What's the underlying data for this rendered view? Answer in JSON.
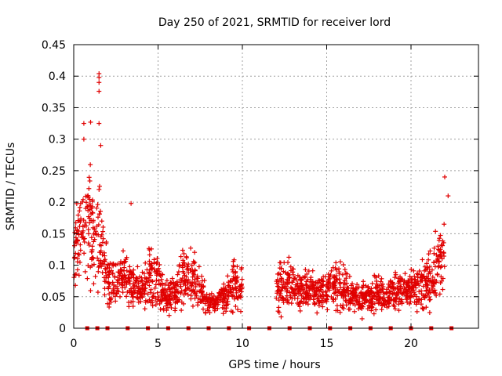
{
  "chart_data": {
    "type": "scatter",
    "title": "Day 250 of 2021, SRMTID for receiver lord",
    "xlabel": "GPS time / hours",
    "ylabel": "SRMTID / TECUs",
    "xlim": [
      0,
      24
    ],
    "ylim": [
      0,
      0.45
    ],
    "xticks": [
      0,
      5,
      10,
      15,
      20
    ],
    "xtick_labels": [
      "0",
      "5",
      "10",
      "15",
      "20"
    ],
    "yticks": [
      0,
      0.05,
      0.1,
      0.15,
      0.2,
      0.25,
      0.3,
      0.35,
      0.4,
      0.45
    ],
    "ytick_labels": [
      "0",
      "0.05",
      "0.1",
      "0.15",
      "0.2",
      "0.25",
      "0.3",
      "0.35",
      "0.4",
      "0.45"
    ],
    "grid": true,
    "marker": "+",
    "color": "#e00000",
    "series": [
      {
        "name": "SRMTID",
        "envelope": {
          "note": "approximate median and spread of the dense scatter, sampled every 0.5 h",
          "x": [
            0,
            0.5,
            1,
            1.5,
            2,
            2.5,
            3,
            3.5,
            4,
            4.5,
            5,
            5.5,
            6,
            6.5,
            7,
            7.5,
            8,
            8.5,
            9,
            9.5,
            10,
            10.5,
            11,
            11.5,
            12,
            12.5,
            13,
            13.5,
            14,
            14.5,
            15,
            15.5,
            16,
            16.5,
            17,
            17.5,
            18,
            18.5,
            19,
            19.5,
            20,
            20.5,
            21,
            21.5,
            22,
            22.5
          ],
          "median": [
            0.12,
            0.16,
            0.17,
            0.15,
            0.08,
            0.07,
            0.09,
            0.07,
            0.06,
            0.08,
            0.07,
            0.05,
            0.06,
            0.08,
            0.08,
            0.06,
            0.04,
            0.04,
            0.05,
            0.07,
            0.06,
            null,
            null,
            null,
            0.06,
            0.07,
            0.07,
            0.06,
            0.06,
            0.06,
            0.06,
            0.07,
            0.06,
            0.05,
            0.05,
            0.05,
            0.06,
            0.05,
            0.06,
            0.06,
            0.06,
            0.06,
            0.07,
            0.09,
            0.12,
            null
          ],
          "spread": [
            0.05,
            0.07,
            0.08,
            0.07,
            0.04,
            0.03,
            0.04,
            0.03,
            0.025,
            0.04,
            0.035,
            0.025,
            0.03,
            0.04,
            0.04,
            0.03,
            0.015,
            0.015,
            0.025,
            0.035,
            0.03,
            null,
            null,
            null,
            0.025,
            0.035,
            0.035,
            0.025,
            0.025,
            0.025,
            0.025,
            0.035,
            0.03,
            0.02,
            0.02,
            0.02,
            0.025,
            0.02,
            0.025,
            0.025,
            0.025,
            0.03,
            0.035,
            0.05,
            0.05,
            null
          ]
        },
        "notable_points": [
          {
            "x": 1.5,
            "y": 0.404
          },
          {
            "x": 1.5,
            "y": 0.398
          },
          {
            "x": 1.5,
            "y": 0.39
          },
          {
            "x": 1.5,
            "y": 0.376
          },
          {
            "x": 0.6,
            "y": 0.325
          },
          {
            "x": 1.0,
            "y": 0.327
          },
          {
            "x": 1.5,
            "y": 0.325
          },
          {
            "x": 0.6,
            "y": 0.3
          },
          {
            "x": 1.6,
            "y": 0.29
          },
          {
            "x": 3.4,
            "y": 0.198
          },
          {
            "x": 22.0,
            "y": 0.24
          },
          {
            "x": 22.2,
            "y": 0.21
          },
          {
            "x": 0.1,
            "y": 0.068
          },
          {
            "x": 12.3,
            "y": 0.018
          },
          {
            "x": 17.1,
            "y": 0.015
          }
        ],
        "zero_markers_x": [
          0.8,
          1.4,
          2.0,
          3.2,
          4.4,
          5.6,
          6.8,
          8.0,
          9.2,
          10.4,
          11.6,
          12.8,
          14.0,
          15.2,
          16.4,
          17.6,
          18.8,
          20.0,
          21.2,
          22.4
        ]
      }
    ]
  }
}
